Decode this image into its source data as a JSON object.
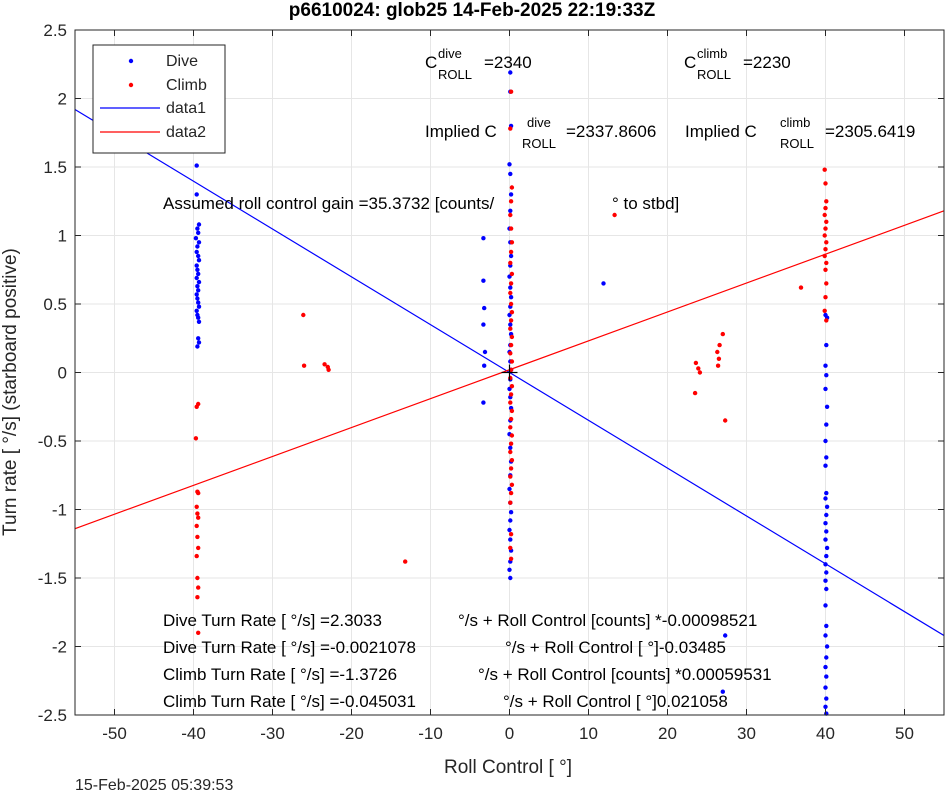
{
  "chart_data": {
    "type": "scatter",
    "title": "p6610024: glob25 14-Feb-2025 22:19:33Z",
    "xlabel": "Roll Control [   °]",
    "ylabel": "Turn rate [   °/s] (starboard positive)",
    "xlim": [
      -55,
      55
    ],
    "ylim": [
      -2.5,
      2.5
    ],
    "xticks": [
      -50,
      -40,
      -30,
      -20,
      -10,
      0,
      10,
      20,
      30,
      40,
      50
    ],
    "yticks": [
      -2.5,
      -2,
      -1.5,
      -1,
      -0.5,
      0,
      0.5,
      1,
      1.5,
      2,
      2.5
    ],
    "xtick_labels": [
      "-50",
      "-40",
      "-30",
      "-20",
      "-10",
      "0",
      "10",
      "20",
      "30",
      "40",
      "50"
    ],
    "ytick_labels": [
      "-2.5",
      "-2",
      "-1.5",
      "-1",
      "-0.5",
      "0",
      "0.5",
      "1",
      "1.5",
      "2",
      "2.5"
    ],
    "grid": true,
    "legend_position": "top-left",
    "series": [
      {
        "name": "Dive",
        "kind": "points",
        "color": "#0000ff",
        "points": [
          [
            -39.6,
            1.51
          ],
          [
            -39.6,
            1.3
          ],
          [
            -39.3,
            1.08
          ],
          [
            -39.5,
            1.05
          ],
          [
            -39.4,
            1.02
          ],
          [
            -39.7,
            0.98
          ],
          [
            -39.3,
            0.95
          ],
          [
            -39.5,
            0.92
          ],
          [
            -39.6,
            0.88
          ],
          [
            -39.4,
            0.85
          ],
          [
            -39.3,
            0.82
          ],
          [
            -39.6,
            0.78
          ],
          [
            -39.5,
            0.75
          ],
          [
            -39.4,
            0.72
          ],
          [
            -39.6,
            0.69
          ],
          [
            -39.3,
            0.66
          ],
          [
            -39.5,
            0.63
          ],
          [
            -39.4,
            0.6
          ],
          [
            -39.6,
            0.57
          ],
          [
            -39.5,
            0.54
          ],
          [
            -39.4,
            0.51
          ],
          [
            -39.3,
            0.48
          ],
          [
            -39.6,
            0.45
          ],
          [
            -39.5,
            0.42
          ],
          [
            -39.4,
            0.4
          ],
          [
            -39.3,
            0.37
          ],
          [
            -39.4,
            0.25
          ],
          [
            -39.3,
            0.22
          ],
          [
            -39.5,
            0.19
          ],
          [
            -3.3,
            0.98
          ],
          [
            -3.3,
            0.67
          ],
          [
            -3.2,
            0.47
          ],
          [
            -3.3,
            0.35
          ],
          [
            -3.1,
            0.15
          ],
          [
            -3.2,
            0.05
          ],
          [
            -3.3,
            -0.22
          ],
          [
            0.1,
            2.19
          ],
          [
            0.1,
            2.05
          ],
          [
            0.2,
            1.8
          ],
          [
            0.0,
            1.52
          ],
          [
            0.1,
            1.45
          ],
          [
            0.2,
            1.3
          ],
          [
            0.1,
            1.18
          ],
          [
            0.0,
            1.05
          ],
          [
            0.1,
            0.95
          ],
          [
            0.2,
            0.85
          ],
          [
            0.1,
            0.78
          ],
          [
            0.0,
            0.7
          ],
          [
            0.1,
            0.62
          ],
          [
            0.2,
            0.55
          ],
          [
            0.1,
            0.48
          ],
          [
            0.0,
            0.42
          ],
          [
            0.1,
            0.35
          ],
          [
            0.2,
            0.28
          ],
          [
            0.1,
            0.2
          ],
          [
            0.0,
            0.15
          ],
          [
            0.1,
            0.08
          ],
          [
            0.2,
            0.02
          ],
          [
            0.1,
            -0.05
          ],
          [
            0.0,
            -0.12
          ],
          [
            0.1,
            -0.18
          ],
          [
            0.2,
            -0.26
          ],
          [
            0.1,
            -0.35
          ],
          [
            0.0,
            -0.45
          ],
          [
            0.1,
            -0.55
          ],
          [
            0.2,
            -0.65
          ],
          [
            0.1,
            -0.75
          ],
          [
            0.0,
            -0.85
          ],
          [
            0.1,
            -0.95
          ],
          [
            0.2,
            -1.02
          ],
          [
            0.1,
            -1.08
          ],
          [
            0.0,
            -1.15
          ],
          [
            0.1,
            -1.22
          ],
          [
            0.2,
            -1.3
          ],
          [
            0.1,
            -1.38
          ],
          [
            0.0,
            -1.44
          ],
          [
            0.1,
            -1.5
          ],
          [
            11.9,
            0.65
          ],
          [
            27.0,
            -2.33
          ],
          [
            27.3,
            -1.92
          ],
          [
            40.0,
            0.42
          ],
          [
            40.2,
            0.4
          ],
          [
            40.1,
            0.2
          ],
          [
            40.0,
            0.05
          ],
          [
            40.1,
            -0.02
          ],
          [
            40.0,
            -0.12
          ],
          [
            40.2,
            -0.25
          ],
          [
            40.1,
            -0.38
          ],
          [
            40.0,
            -0.5
          ],
          [
            40.1,
            -0.62
          ],
          [
            40.0,
            -0.68
          ],
          [
            40.1,
            -0.88
          ],
          [
            40.0,
            -0.92
          ],
          [
            40.2,
            -0.98
          ],
          [
            40.1,
            -1.04
          ],
          [
            40.0,
            -1.1
          ],
          [
            40.1,
            -1.16
          ],
          [
            40.0,
            -1.22
          ],
          [
            40.2,
            -1.28
          ],
          [
            40.1,
            -1.34
          ],
          [
            40.0,
            -1.4
          ],
          [
            40.1,
            -1.46
          ],
          [
            40.0,
            -1.52
          ],
          [
            40.1,
            -1.58
          ],
          [
            40.0,
            -1.7
          ],
          [
            40.1,
            -1.85
          ],
          [
            40.0,
            -1.92
          ],
          [
            40.2,
            -2.0
          ],
          [
            40.1,
            -2.08
          ],
          [
            40.0,
            -2.15
          ],
          [
            40.1,
            -2.22
          ],
          [
            40.0,
            -2.3
          ],
          [
            40.1,
            -2.38
          ],
          [
            40.0,
            -2.44
          ],
          [
            40.1,
            -2.49
          ]
        ]
      },
      {
        "name": "Climb",
        "kind": "points",
        "color": "#ff0000",
        "points": [
          [
            -39.4,
            -0.23
          ],
          [
            -39.6,
            -0.25
          ],
          [
            -39.7,
            -0.48
          ],
          [
            -39.5,
            -0.87
          ],
          [
            -39.4,
            -0.88
          ],
          [
            -39.6,
            -0.98
          ],
          [
            -39.5,
            -1.03
          ],
          [
            -39.4,
            -1.06
          ],
          [
            -39.6,
            -1.12
          ],
          [
            -39.5,
            -1.2
          ],
          [
            -39.4,
            -1.28
          ],
          [
            -39.6,
            -1.34
          ],
          [
            -39.5,
            -1.5
          ],
          [
            -39.4,
            -1.57
          ],
          [
            -39.5,
            -1.64
          ],
          [
            -39.4,
            -1.9
          ],
          [
            -26.1,
            0.42
          ],
          [
            -26.0,
            0.05
          ],
          [
            -23.4,
            0.06
          ],
          [
            -23.0,
            0.04
          ],
          [
            -22.9,
            0.02
          ],
          [
            -13.2,
            -1.38
          ],
          [
            0.2,
            2.05
          ],
          [
            0.1,
            1.78
          ],
          [
            0.3,
            1.35
          ],
          [
            0.2,
            1.25
          ],
          [
            0.1,
            1.15
          ],
          [
            0.2,
            1.05
          ],
          [
            0.3,
            0.95
          ],
          [
            0.2,
            0.88
          ],
          [
            0.1,
            0.8
          ],
          [
            0.3,
            0.72
          ],
          [
            0.2,
            0.65
          ],
          [
            0.1,
            0.58
          ],
          [
            0.2,
            0.5
          ],
          [
            0.3,
            0.44
          ],
          [
            0.2,
            0.38
          ],
          [
            0.1,
            0.32
          ],
          [
            0.3,
            0.26
          ],
          [
            0.2,
            0.2
          ],
          [
            0.1,
            0.14
          ],
          [
            0.3,
            0.08
          ],
          [
            0.2,
            0.02
          ],
          [
            0.1,
            -0.04
          ],
          [
            0.3,
            -0.1
          ],
          [
            0.2,
            -0.16
          ],
          [
            0.1,
            -0.22
          ],
          [
            0.3,
            -0.28
          ],
          [
            0.2,
            -0.34
          ],
          [
            0.1,
            -0.4
          ],
          [
            0.3,
            -0.46
          ],
          [
            0.2,
            -0.52
          ],
          [
            0.1,
            -0.58
          ],
          [
            0.3,
            -0.64
          ],
          [
            0.2,
            -0.7
          ],
          [
            0.1,
            -0.76
          ],
          [
            0.3,
            -0.82
          ],
          [
            0.2,
            -0.88
          ],
          [
            0.1,
            -0.95
          ],
          [
            0.2,
            -1.18
          ],
          [
            0.1,
            -1.28
          ],
          [
            0.2,
            -1.36
          ],
          [
            13.3,
            1.15
          ],
          [
            23.6,
            0.07
          ],
          [
            23.9,
            0.03
          ],
          [
            24.1,
            0.0
          ],
          [
            23.5,
            -0.15
          ],
          [
            26.3,
            0.15
          ],
          [
            26.4,
            0.05
          ],
          [
            26.5,
            0.1
          ],
          [
            26.6,
            0.2
          ],
          [
            27.0,
            0.28
          ],
          [
            27.3,
            -0.35
          ],
          [
            36.9,
            0.62
          ],
          [
            39.9,
            1.48
          ],
          [
            40.0,
            1.38
          ],
          [
            40.1,
            1.25
          ],
          [
            40.0,
            1.2
          ],
          [
            39.9,
            1.15
          ],
          [
            40.1,
            1.1
          ],
          [
            40.0,
            1.05
          ],
          [
            39.9,
            1.0
          ],
          [
            40.1,
            0.95
          ],
          [
            40.0,
            0.9
          ],
          [
            39.9,
            0.85
          ],
          [
            40.1,
            0.8
          ],
          [
            40.0,
            0.75
          ],
          [
            40.1,
            0.65
          ],
          [
            40.0,
            0.55
          ],
          [
            39.9,
            0.45
          ],
          [
            40.1,
            0.38
          ]
        ]
      },
      {
        "name": "data1",
        "kind": "line",
        "color": "#0000ff",
        "points": [
          [
            -55,
            1.92
          ],
          [
            55,
            -1.92
          ]
        ]
      },
      {
        "name": "data2",
        "kind": "line",
        "color": "#ff0000",
        "points": [
          [
            -55,
            -1.14
          ],
          [
            55,
            1.18
          ]
        ]
      }
    ],
    "cross_marker": [
      0,
      0
    ],
    "annotations": {
      "c_roll_dive": {
        "prefix": "C",
        "sup": "dive",
        "sub": "ROLL",
        "value": "=2340"
      },
      "c_roll_climb": {
        "prefix": "C",
        "sup": "climb",
        "sub": "ROLL",
        "value": "=2230"
      },
      "implied_dive": {
        "prefix": "Implied C",
        "sup": "dive",
        "sub": "ROLL",
        "value": "=2337.8606"
      },
      "implied_climb": {
        "prefix": "Implied C",
        "sup": "climb",
        "sub": "ROLL",
        "value": "=2305.6419"
      },
      "gain_a": "Assumed roll control gain =35.3732 [counts/",
      "gain_b": "° to stbd]",
      "eq1_a": "Dive Turn Rate [    °/s] =2.3033",
      "eq1_b": "°/s + Roll Control [counts] *-0.00098521",
      "eq2_a": "Dive Turn Rate [    °/s] =-0.0021078",
      "eq2_b": "°/s + Roll Control [       °]-0.03485",
      "eq3_a": "Climb Turn Rate [    °/s] =-1.3726",
      "eq3_b": "°/s + Roll Control [counts] *0.00059531",
      "eq4_a": "Climb Turn Rate [    °/s] =-0.045031",
      "eq4_b": "°/s + Roll Control [       °]0.021058"
    },
    "footer_timestamp": "15-Feb-2025 05:39:53"
  }
}
